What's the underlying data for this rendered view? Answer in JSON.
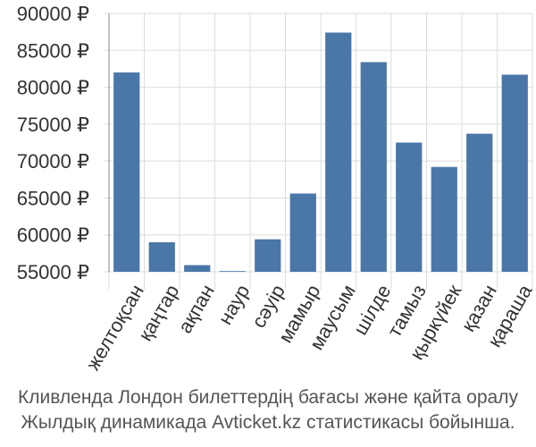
{
  "chart_data": {
    "type": "bar",
    "categories": [
      "желтоқсан",
      "қаңтар",
      "ақпан",
      "наур",
      "сәуір",
      "мамыр",
      "маусым",
      "шілде",
      "тамыз",
      "қыркүйек",
      "қазан",
      "қараша"
    ],
    "values": [
      82000,
      59000,
      55900,
      55100,
      59400,
      65600,
      87400,
      83400,
      72500,
      69200,
      73700,
      81700
    ],
    "yticks": [
      "90000 ₽",
      "85000 ₽",
      "80000 ₽",
      "75000 ₽",
      "70000 ₽",
      "65000 ₽",
      "60000 ₽",
      "55000 ₽"
    ],
    "ylim": [
      55000,
      90000
    ],
    "grid": true,
    "bar_color": "#4a76a8",
    "grid_color": "#dddddd"
  },
  "caption": {
    "line1": "Кливленда Лондон билеттердің бағасы және қайта оралу",
    "line2": "Жылдық динамикада Avticket.kz статистикасы бойынша."
  }
}
